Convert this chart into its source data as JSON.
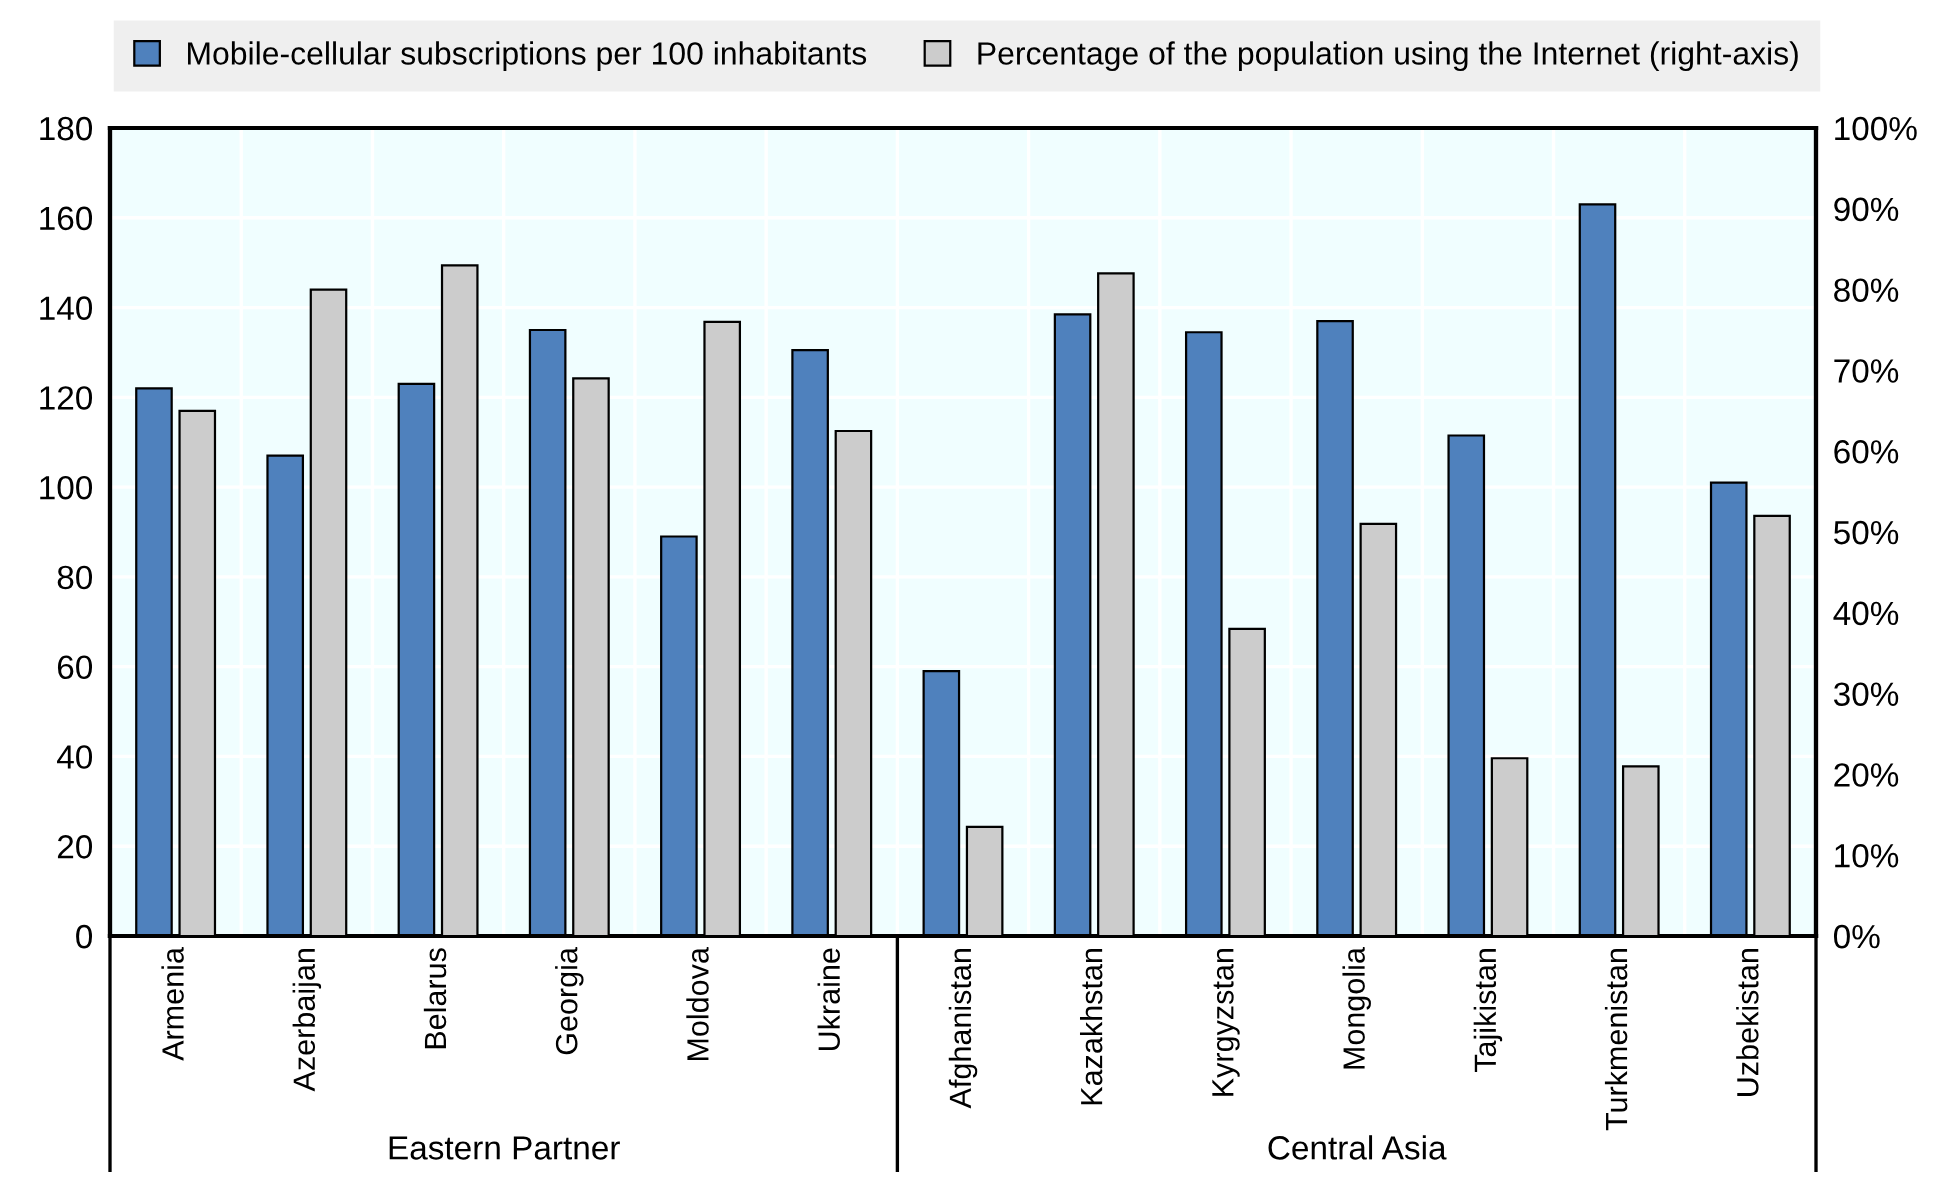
{
  "chart_data": {
    "type": "bar",
    "categories": [
      "Armenia",
      "Azerbaijan",
      "Belarus",
      "Georgia",
      "Moldova",
      "Ukraine",
      "Afghanistan",
      "Kazakhstan",
      "Kyrgyzstan",
      "Mongolia",
      "Tajikistan",
      "Turkmenistan",
      "Uzbekistan"
    ],
    "series": [
      {
        "name": "Mobile-cellular subscriptions per 100 inhabitants",
        "color": "#4f81bd",
        "values": [
          122,
          107,
          123,
          135,
          89,
          130.5,
          59,
          138.5,
          134.5,
          137,
          111.5,
          163,
          101
        ]
      },
      {
        "name": "Percentage of the population using the Internet (right-axis)",
        "color": "#cccccc",
        "axis": "y2",
        "values": [
          65,
          80,
          83,
          69,
          76,
          62.5,
          13.5,
          82,
          38,
          51,
          22,
          21,
          52
        ]
      }
    ],
    "ylim": [
      0,
      180
    ],
    "yticks": [
      0,
      20,
      40,
      60,
      80,
      100,
      120,
      140,
      160,
      180
    ],
    "y2lim": [
      0,
      100
    ],
    "y2ticks": [
      {
        "value": 0,
        "label": "0%"
      },
      {
        "value": 10,
        "label": "10%"
      },
      {
        "value": 20,
        "label": "20%"
      },
      {
        "value": 30,
        "label": "30%"
      },
      {
        "value": 40,
        "label": "40%"
      },
      {
        "value": 50,
        "label": "50%"
      },
      {
        "value": 60,
        "label": "60%"
      },
      {
        "value": 70,
        "label": "70%"
      },
      {
        "value": 80,
        "label": "80%"
      },
      {
        "value": 90,
        "label": "90%"
      },
      {
        "value": 100,
        "label": "100%"
      }
    ],
    "annotations": [
      "Eastern Partner",
      "Central Asia"
    ],
    "grid": true,
    "legend": "top"
  }
}
